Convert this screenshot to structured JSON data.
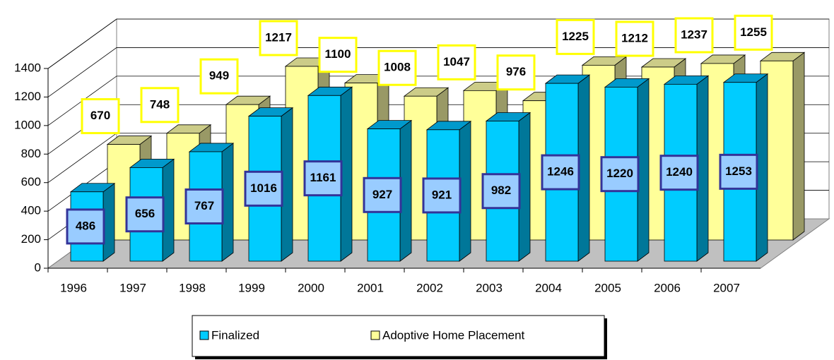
{
  "chart_data": {
    "type": "bar3d",
    "categories": [
      "1996",
      "1997",
      "1998",
      "1999",
      "2000",
      "2001",
      "2002",
      "2003",
      "2004",
      "2005",
      "2006",
      "2007"
    ],
    "series": [
      {
        "name": "Finalized",
        "color": "#00ccff",
        "values": [
          486,
          656,
          767,
          1016,
          1161,
          927,
          921,
          982,
          1246,
          1220,
          1240,
          1253
        ]
      },
      {
        "name": "Adoptive Home Placement",
        "color": "#ffff99",
        "values": [
          670,
          748,
          949,
          1217,
          1100,
          1008,
          1047,
          976,
          1225,
          1212,
          1237,
          1255
        ]
      }
    ],
    "ylim": [
      0,
      1400
    ],
    "yticks": [
      0,
      200,
      400,
      600,
      800,
      1000,
      1200,
      1400
    ],
    "grid": true,
    "legend": "bottom"
  }
}
